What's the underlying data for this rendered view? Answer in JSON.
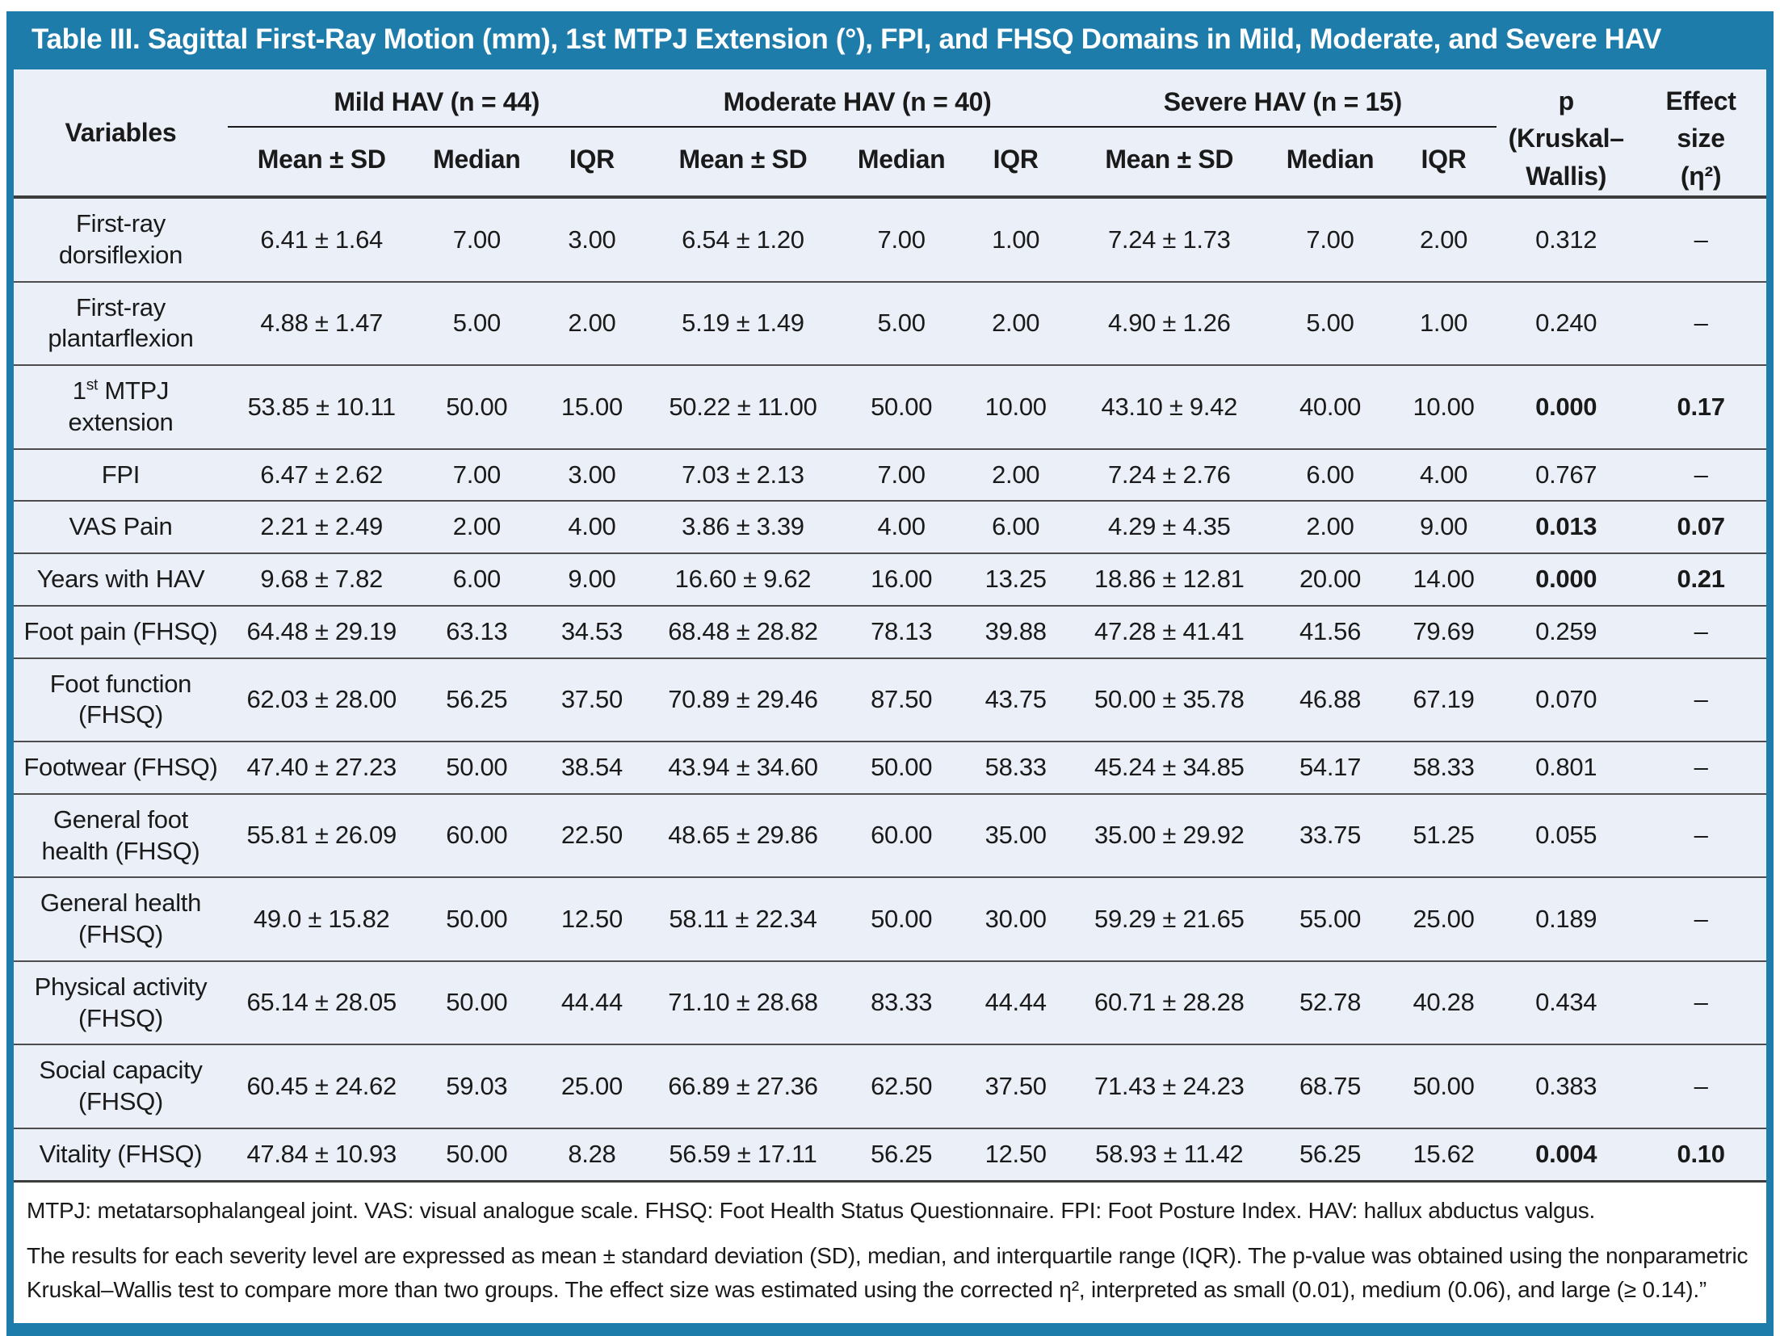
{
  "title": "Table III. Sagittal First-Ray Motion (mm), 1st MTPJ Extension (°), FPI, and FHSQ Domains in Mild, Moderate, and Severe HAV",
  "colors": {
    "accent": "#1e7cab",
    "body_bg": "#ebeff8"
  },
  "columns": {
    "variables": "Variables",
    "groups": [
      {
        "label": "Mild HAV (n = 44)"
      },
      {
        "label": "Moderate HAV (n = 40)"
      },
      {
        "label": "Severe HAV (n = 15)"
      }
    ],
    "stat_headers": [
      "Mean ± SD",
      "Median",
      "IQR"
    ],
    "p_header": [
      "p",
      "(Kruskal–",
      "Wallis)"
    ],
    "effect_header": [
      "Effect",
      "size",
      "(η²)"
    ]
  },
  "rows": [
    {
      "variable": "First-ray dorsiflexion",
      "values": [
        "6.41 ± 1.64",
        "7.00",
        "3.00",
        "6.54 ± 1.20",
        "7.00",
        "1.00",
        "7.24 ± 1.73",
        "7.00",
        "2.00"
      ],
      "p": "0.312",
      "effect": "–",
      "significant": false
    },
    {
      "variable": "First-ray plantarflexion",
      "values": [
        "4.88 ± 1.47",
        "5.00",
        "2.00",
        "5.19 ± 1.49",
        "5.00",
        "2.00",
        "4.90 ± 1.26",
        "5.00",
        "1.00"
      ],
      "p": "0.240",
      "effect": "–",
      "significant": false
    },
    {
      "variable": "1st MTPJ extension",
      "values": [
        "53.85 ± 10.11",
        "50.00",
        "15.00",
        "50.22 ± 11.00",
        "50.00",
        "10.00",
        "43.10 ± 9.42",
        "40.00",
        "10.00"
      ],
      "p": "0.000",
      "effect": "0.17",
      "significant": true
    },
    {
      "variable": "FPI",
      "values": [
        "6.47 ± 2.62",
        "7.00",
        "3.00",
        "7.03 ± 2.13",
        "7.00",
        "2.00",
        "7.24 ± 2.76",
        "6.00",
        "4.00"
      ],
      "p": "0.767",
      "effect": "–",
      "significant": false
    },
    {
      "variable": "VAS Pain",
      "values": [
        "2.21 ± 2.49",
        "2.00",
        "4.00",
        "3.86 ± 3.39",
        "4.00",
        "6.00",
        "4.29 ± 4.35",
        "2.00",
        "9.00"
      ],
      "p": "0.013",
      "effect": "0.07",
      "significant": true
    },
    {
      "variable": "Years with HAV",
      "values": [
        "9.68 ± 7.82",
        "6.00",
        "9.00",
        "16.60 ± 9.62",
        "16.00",
        "13.25",
        "18.86 ± 12.81",
        "20.00",
        "14.00"
      ],
      "p": "0.000",
      "effect": "0.21",
      "significant": true
    },
    {
      "variable": "Foot pain (FHSQ)",
      "values": [
        "64.48 ± 29.19",
        "63.13",
        "34.53",
        "68.48 ± 28.82",
        "78.13",
        "39.88",
        "47.28 ± 41.41",
        "41.56",
        "79.69"
      ],
      "p": "0.259",
      "effect": "–",
      "significant": false
    },
    {
      "variable": "Foot function (FHSQ)",
      "values": [
        "62.03 ± 28.00",
        "56.25",
        "37.50",
        "70.89 ± 29.46",
        "87.50",
        "43.75",
        "50.00 ± 35.78",
        "46.88",
        "67.19"
      ],
      "p": "0.070",
      "effect": "–",
      "significant": false
    },
    {
      "variable": "Footwear (FHSQ)",
      "values": [
        "47.40 ± 27.23",
        "50.00",
        "38.54",
        "43.94 ± 34.60",
        "50.00",
        "58.33",
        "45.24 ± 34.85",
        "54.17",
        "58.33"
      ],
      "p": "0.801",
      "effect": "–",
      "significant": false
    },
    {
      "variable": "General foot health (FHSQ)",
      "values": [
        "55.81 ± 26.09",
        "60.00",
        "22.50",
        "48.65 ± 29.86",
        "60.00",
        "35.00",
        "35.00 ± 29.92",
        "33.75",
        "51.25"
      ],
      "p": "0.055",
      "effect": "–",
      "significant": false
    },
    {
      "variable": "General health (FHSQ)",
      "values": [
        "49.0 ± 15.82",
        "50.00",
        "12.50",
        "58.11 ± 22.34",
        "50.00",
        "30.00",
        "59.29 ± 21.65",
        "55.00",
        "25.00"
      ],
      "p": "0.189",
      "effect": "–",
      "significant": false
    },
    {
      "variable": "Physical activity (FHSQ)",
      "values": [
        "65.14 ± 28.05",
        "50.00",
        "44.44",
        "71.10 ± 28.68",
        "83.33",
        "44.44",
        "60.71 ± 28.28",
        "52.78",
        "40.28"
      ],
      "p": "0.434",
      "effect": "–",
      "significant": false
    },
    {
      "variable": "Social capacity (FHSQ)",
      "values": [
        "60.45 ± 24.62",
        "59.03",
        "25.00",
        "66.89 ± 27.36",
        "62.50",
        "37.50",
        "71.43 ± 24.23",
        "68.75",
        "50.00"
      ],
      "p": "0.383",
      "effect": "–",
      "significant": false
    },
    {
      "variable": "Vitality (FHSQ)",
      "values": [
        "47.84 ± 10.93",
        "50.00",
        "8.28",
        "56.59 ± 17.11",
        "56.25",
        "12.50",
        "58.93 ± 11.42",
        "56.25",
        "15.62"
      ],
      "p": "0.004",
      "effect": "0.10",
      "significant": true
    }
  ],
  "footnotes": [
    "MTPJ: metatarsophalangeal joint. VAS: visual analogue scale. FHSQ: Foot Health Status Questionnaire. FPI: Foot Posture Index. HAV: hallux abductus valgus.",
    "The results for each severity level are expressed as mean ± standard deviation (SD), median, and interquartile range (IQR). The p-value was obtained using the nonparametric Kruskal–Wallis test to compare more than two groups. The effect size was estimated using the corrected η², interpreted as small (0.01), medium (0.06), and large (≥ 0.14).”"
  ]
}
